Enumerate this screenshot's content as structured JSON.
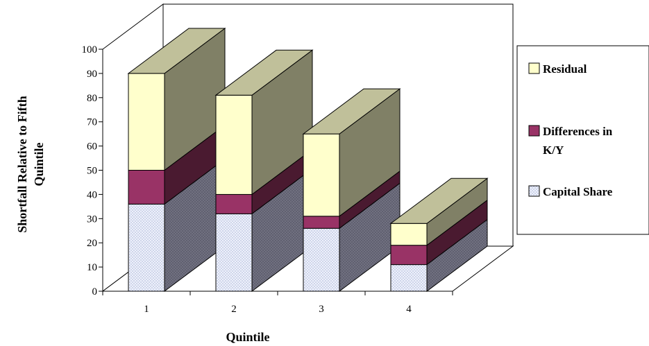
{
  "chart_data": {
    "type": "bar",
    "stacked": true,
    "three_d": true,
    "title": "",
    "xlabel": "Quintile",
    "ylabel": "Shortfall Relative to Fifth Quintile",
    "categories": [
      "1",
      "2",
      "3",
      "4"
    ],
    "ylim": [
      0,
      100
    ],
    "yticks": [
      0,
      10,
      20,
      30,
      40,
      50,
      60,
      70,
      80,
      90,
      100
    ],
    "legend_position": "right",
    "series": [
      {
        "name": "Capital Share",
        "values": [
          36,
          32,
          26,
          11
        ],
        "color": "#e8ecf8",
        "pattern": "dotted"
      },
      {
        "name": "Differences in K/Y",
        "values": [
          14,
          8,
          5,
          8
        ],
        "color": "#993366"
      },
      {
        "name": "Residual",
        "values": [
          40,
          41,
          34,
          9
        ],
        "color": "#ffffcc"
      }
    ],
    "legend_order": [
      "Residual",
      "Differences in K/Y",
      "Capital Share"
    ]
  }
}
